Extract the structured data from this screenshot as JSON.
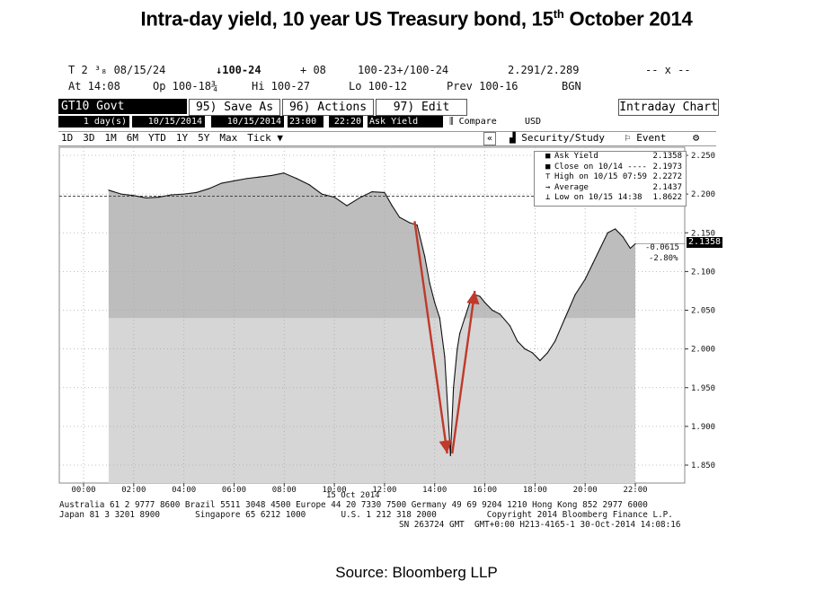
{
  "title": {
    "main": "Intra-day yield, 10 year US Treasury bond, 15",
    "sup": "th",
    "tail": " October 2014"
  },
  "source": "Source: Bloomberg LLP",
  "header": {
    "line1": {
      "security": "T 2 ³₈ 08/15/24",
      "last": "↓100-24",
      "change": "+ 08",
      "bidask": "100-23+/100-24",
      "yields": "2.291/2.289",
      "misc": "-- x --"
    },
    "line2": {
      "at": "At 14:08",
      "open": "Op 100-18¾",
      "high": "Hi 100-27",
      "low": "Lo 100-12",
      "prev": "Prev 100-16",
      "src": "BGN"
    }
  },
  "toolbar": {
    "ticker": "GT10 Govt",
    "save_as": "95) Save As",
    "actions": "96) Actions",
    "edit": "97) Edit",
    "intraday": "Intraday Chart"
  },
  "controls": {
    "days": "1 day(s)",
    "from_date": "10/15/2014",
    "to_date": "10/15/2014",
    "from_time": "23:00",
    "to_time": "22:20",
    "field": "Ask Yield",
    "compare": "Compare",
    "currency": "USD"
  },
  "ranges": [
    "1D",
    "3D",
    "1M",
    "6M",
    "YTD",
    "1Y",
    "5Y",
    "Max",
    "Tick ▼"
  ],
  "tools": {
    "security_study": "Security/Study",
    "event": "Event",
    "collapse": "«"
  },
  "legend": {
    "rows": [
      {
        "label": "Ask Yield",
        "value": "2.1358"
      },
      {
        "label": "Close on 10/14 ----",
        "value": "2.1973"
      },
      {
        "label": "High on 10/15 07:59",
        "value": "2.2272"
      },
      {
        "label": "Average",
        "value": "2.1437"
      },
      {
        "label": "Low on 10/15 14:38",
        "value": "1.8622"
      }
    ]
  },
  "last_tag": {
    "value": "2.1358",
    "change": "-0.0615",
    "pct": "-2.80%"
  },
  "date_label": "15 Oct 2014",
  "footer": {
    "line1": "Australia 61 2 9777 8600 Brazil 5511 3048 4500 Europe 44 20 7330 7500 Germany 49 69 9204 1210 Hong Kong 852 2977 6000",
    "line2": "Japan 81 3 3201 8900       Singapore 65 6212 1000       U.S. 1 212 318 2000          Copyright 2014 Bloomberg Finance L.P.",
    "line3": "SN 263724 GMT  GMT+0:00 H213-4165-1 30-Oct-2014 14:08:16"
  },
  "chart_data": {
    "type": "area",
    "ylim": [
      1.83,
      2.26
    ],
    "xlim": [
      0,
      24
    ],
    "y_ticks": [
      1.85,
      1.9,
      1.95,
      2.0,
      2.05,
      2.1,
      2.15,
      2.2,
      2.25
    ],
    "y_tick_labels": [
      "1.850",
      "1.900",
      "1.950",
      "2.000",
      "2.050",
      "2.100",
      "2.150",
      "2.200",
      "2.250"
    ],
    "x_ticks": [
      0,
      2,
      4,
      6,
      8,
      10,
      12,
      14,
      16,
      18,
      20,
      22
    ],
    "x_tick_labels": [
      "00:00",
      "02:00",
      "04:00",
      "06:00",
      "08:00",
      "10:00",
      "12:00",
      "14:00",
      "16:00",
      "18:00",
      "20:00",
      "22:00"
    ],
    "reference_line": 2.1973,
    "average_line": 2.1437,
    "series": [
      {
        "x": [
          1.0,
          1.5,
          2.0,
          2.5,
          3.0,
          3.5,
          4.0,
          4.5,
          5.0,
          5.5,
          6.0,
          6.5,
          7.0,
          7.5,
          7.98,
          8.5,
          9.0,
          9.5,
          10.0,
          10.5,
          11.0,
          11.5,
          12.0,
          12.3,
          12.6,
          13.0,
          13.3,
          13.6,
          13.8,
          14.0,
          14.2,
          14.4,
          14.63,
          14.75,
          14.9,
          15.0,
          15.2,
          15.4,
          15.6,
          15.8,
          16.0,
          16.3,
          16.6,
          17.0,
          17.3,
          17.6,
          17.9,
          18.2,
          18.5,
          18.8,
          19.2,
          19.6,
          20.0,
          20.3,
          20.6,
          20.9,
          21.2,
          21.5,
          21.8,
          22.0
        ],
        "y": [
          2.205,
          2.2,
          2.198,
          2.195,
          2.196,
          2.199,
          2.2,
          2.202,
          2.207,
          2.214,
          2.217,
          2.22,
          2.222,
          2.224,
          2.2272,
          2.22,
          2.212,
          2.2,
          2.196,
          2.185,
          2.195,
          2.203,
          2.202,
          2.185,
          2.17,
          2.163,
          2.16,
          2.12,
          2.085,
          2.06,
          2.04,
          1.99,
          1.8622,
          1.95,
          2.0,
          2.02,
          2.04,
          2.06,
          2.07,
          2.068,
          2.06,
          2.05,
          2.045,
          2.03,
          2.01,
          2.0,
          1.995,
          1.985,
          1.995,
          2.01,
          2.04,
          2.07,
          2.09,
          2.11,
          2.13,
          2.15,
          2.155,
          2.145,
          2.13,
          2.1358
        ]
      }
    ],
    "annotations": [
      {
        "type": "arrow",
        "from": [
          13.2,
          2.165
        ],
        "to": [
          14.5,
          1.865
        ]
      },
      {
        "type": "arrow",
        "from": [
          14.7,
          1.865
        ],
        "to": [
          15.6,
          2.075
        ]
      }
    ]
  }
}
